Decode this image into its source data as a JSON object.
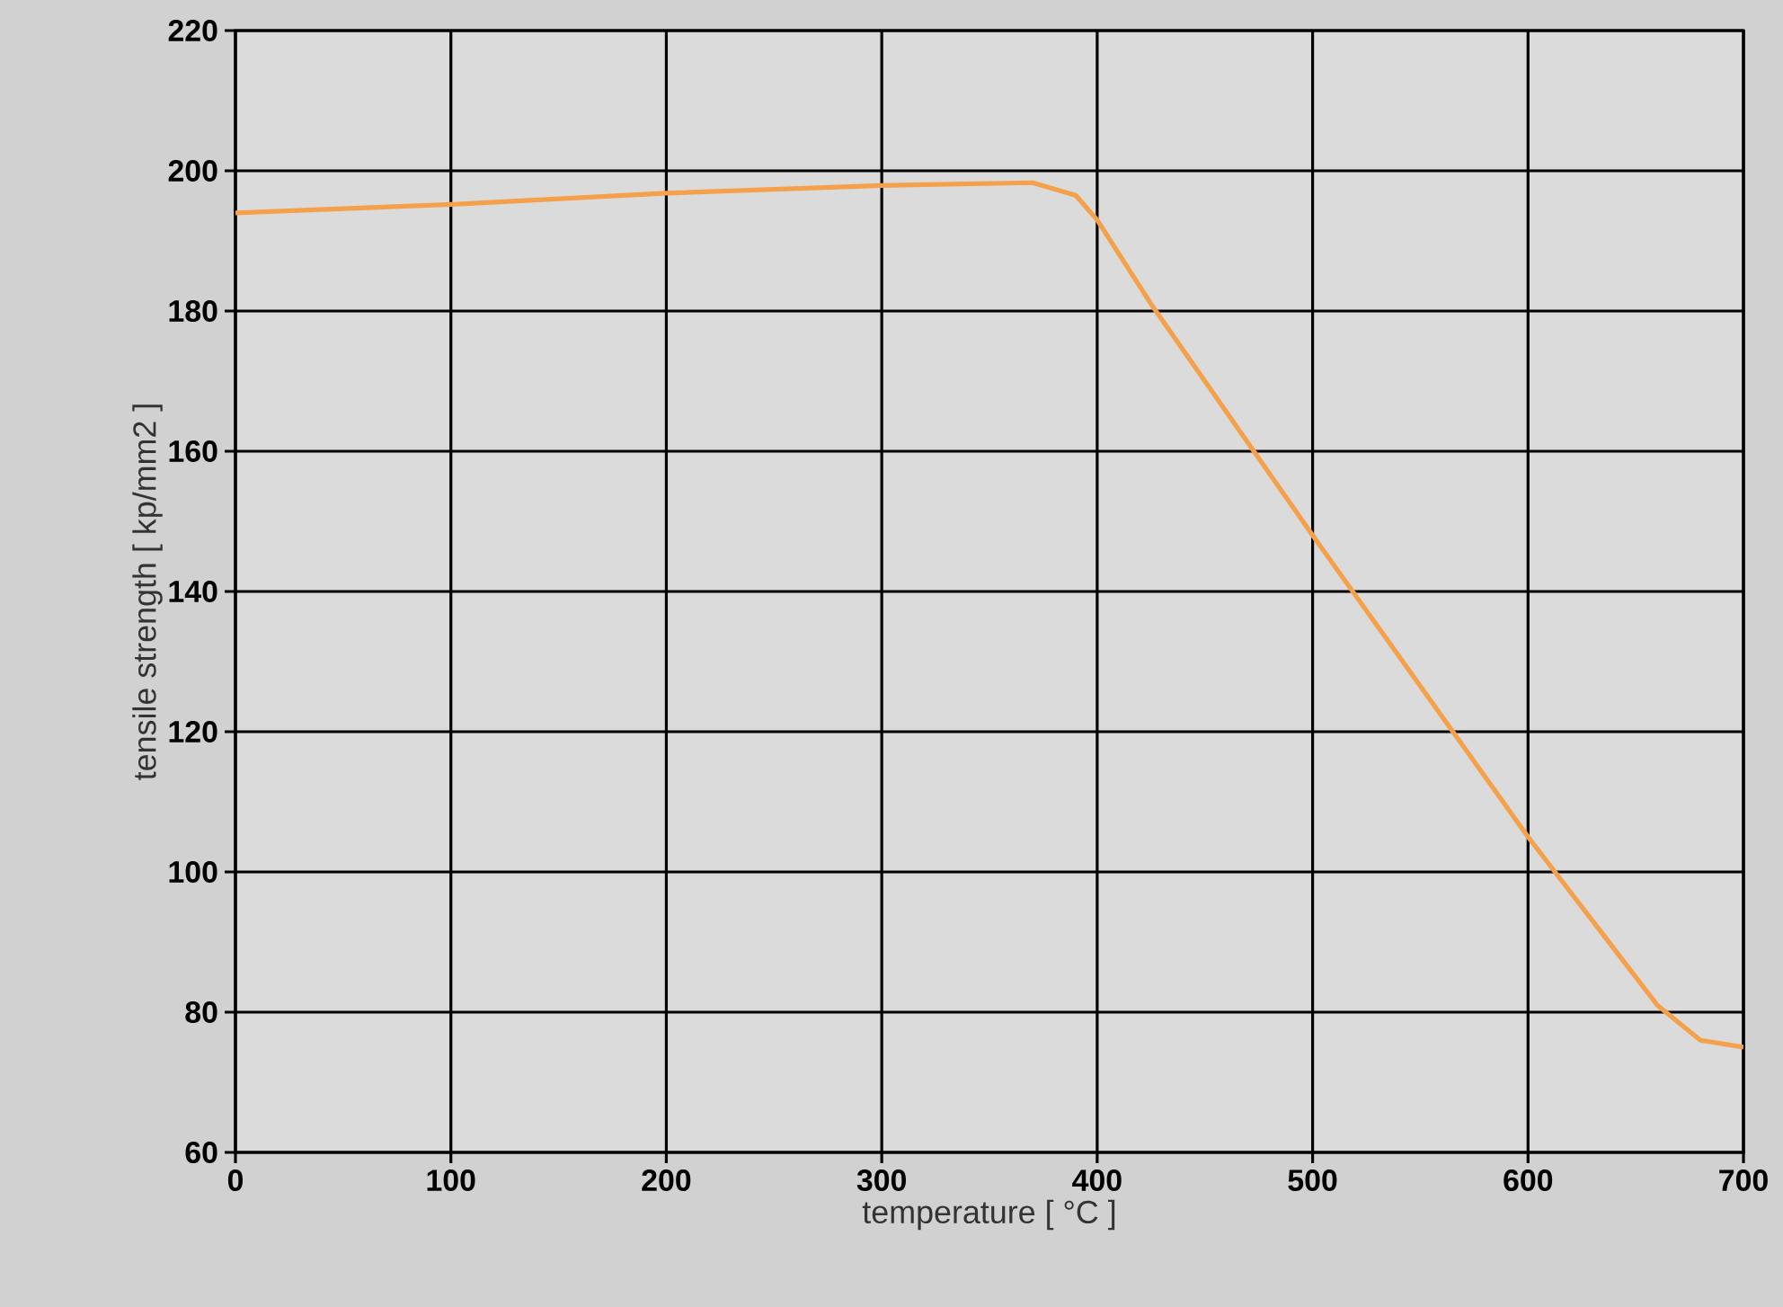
{
  "chart_data": {
    "type": "line",
    "xlabel": "temperature   [ °C ]",
    "ylabel": "tensile strength [ kp/mm2 ]",
    "x": [
      0,
      100,
      200,
      300,
      370,
      390,
      400,
      425,
      500,
      600,
      660,
      680,
      700
    ],
    "series": [
      {
        "color": "#f5a04a",
        "values": [
          194,
          195.2,
          196.8,
          197.9,
          198.3,
          196.5,
          193,
          181,
          148,
          105,
          81,
          76,
          75
        ]
      }
    ],
    "xlim": [
      0,
      700
    ],
    "ylim": [
      60,
      220
    ],
    "xticks": [
      0,
      100,
      200,
      300,
      400,
      500,
      600,
      700
    ],
    "yticks": [
      60,
      80,
      100,
      120,
      140,
      160,
      180,
      200,
      220
    ],
    "grid": true,
    "marker": "none",
    "line_style": "solid"
  }
}
